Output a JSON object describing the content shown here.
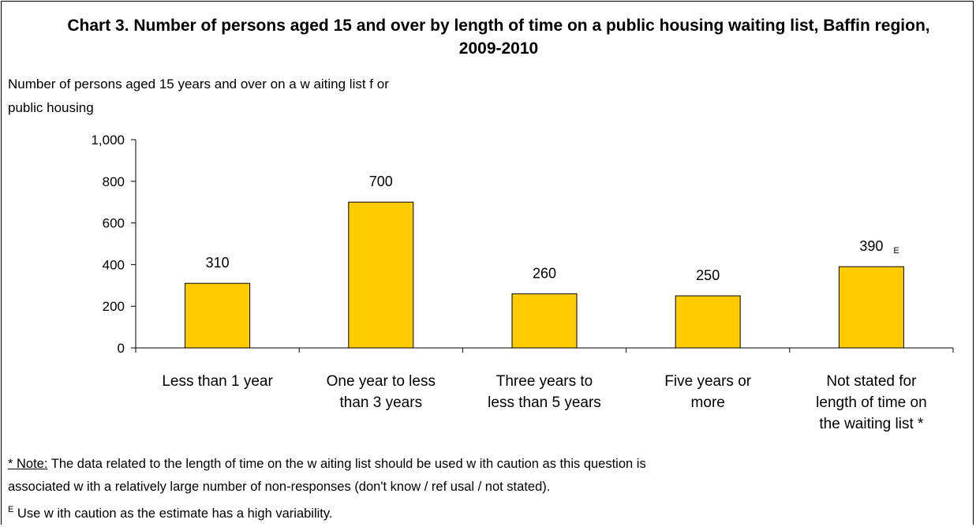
{
  "chart_data": {
    "type": "bar",
    "title": "Chart 3. Number of persons aged 15 and over by length of time on a public housing waiting list, Baffin region, 2009-2010",
    "ylabel": "Number of persons aged 15 years and over on a w aiting list f or public housing",
    "xlabel": "",
    "ylim": [
      0,
      1000
    ],
    "yticks": [
      "0",
      "200",
      "400",
      "600",
      "800",
      "1,000"
    ],
    "categories": [
      "Less than 1 year",
      "One year to less than 3 years",
      "Three years to less than 5 years",
      "Five years or more",
      "Not stated for length of time on the waiting list *"
    ],
    "category_lines": [
      [
        "Less than 1 year"
      ],
      [
        "One year to less",
        "than 3 years"
      ],
      [
        "Three years to",
        "less than 5 years"
      ],
      [
        "Five years or",
        "more"
      ],
      [
        "Not stated for",
        "length of time on",
        "the waiting list *"
      ]
    ],
    "values": [
      310,
      700,
      260,
      250,
      390
    ],
    "data_labels": [
      "310",
      "700",
      "260",
      "250",
      "390"
    ],
    "flags": [
      "",
      "",
      "",
      "",
      "E"
    ],
    "bar_color": "#FFCC00",
    "grid": false,
    "legend": "none"
  },
  "notes": {
    "note_key": "* Note:",
    "note_text": " The data related to the length of time on the w aiting list should be used w ith caution as this question is",
    "note_text_2": "associated w ith a relatively large number of non-responses (don't know  / ref usal / not stated).",
    "e_symbol": "E",
    "e_text": " Use w ith caution as the estimate has a high variability."
  }
}
